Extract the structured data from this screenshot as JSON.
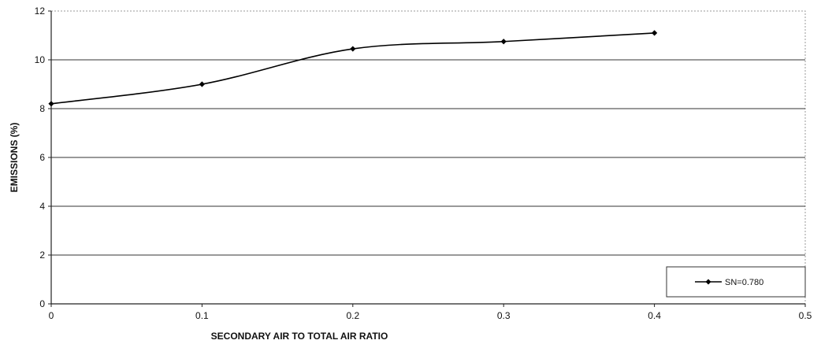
{
  "chart_data": {
    "type": "line",
    "title": "",
    "xlabel": "SECONDARY AIR TO TOTAL AIR RATIO",
    "ylabel": "EMISSIONS (%)",
    "xlim": [
      0,
      0.5
    ],
    "ylim": [
      0,
      12
    ],
    "xticks": [
      "0",
      "0.1",
      "0.2",
      "0.3",
      "0.4",
      "0.5"
    ],
    "yticks": [
      "0",
      "2",
      "4",
      "6",
      "8",
      "10",
      "12"
    ],
    "grid": "horizontal",
    "legend_position": "bottom-right",
    "series": [
      {
        "name": "SN=0.780",
        "x": [
          0,
          0.1,
          0.2,
          0.3,
          0.4
        ],
        "y": [
          8.2,
          9.0,
          10.45,
          10.75,
          11.1
        ],
        "color": "#000000",
        "marker": "diamond"
      }
    ]
  }
}
